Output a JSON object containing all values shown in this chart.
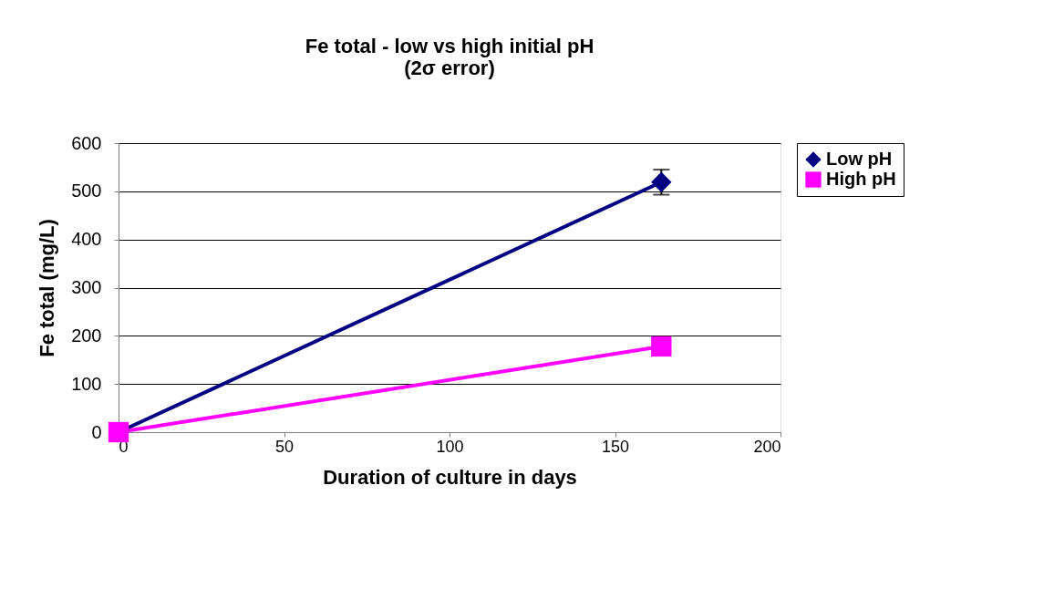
{
  "chart_data": {
    "type": "line",
    "title": [
      "Fe total - low vs high initial pH",
      "(2σ error)"
    ],
    "xlabel": "Duration of culture in days",
    "ylabel": "Fe total (mg/L)",
    "x": [
      0,
      164
    ],
    "series": [
      {
        "name": "Low pH",
        "color": "#000080",
        "values": [
          0,
          519
        ],
        "errors": [
          null,
          26
        ],
        "marker": "diamond"
      },
      {
        "name": "High pH",
        "color": "#ff00ff",
        "values": [
          0,
          178
        ],
        "marker": "square"
      }
    ],
    "xlim": [
      0,
      200
    ],
    "xticks": [
      0,
      50,
      100,
      150,
      200
    ],
    "ylim": [
      0,
      600
    ],
    "yticks": [
      0,
      100,
      200,
      300,
      400,
      500,
      600
    ],
    "grid": "y",
    "legend": "right",
    "line_style": "solid"
  }
}
